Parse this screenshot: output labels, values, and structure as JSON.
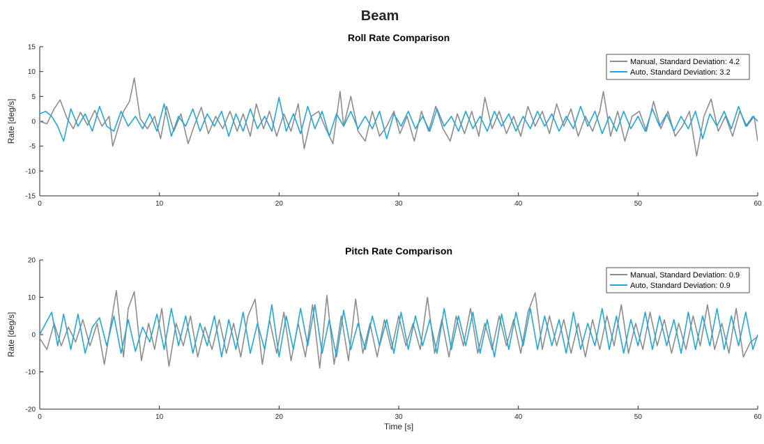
{
  "figure_title": "Beam",
  "chart_data": [
    {
      "type": "line",
      "title": "Roll Rate Comparison",
      "xlabel": "",
      "ylabel": "Rate [deg/s]",
      "xlim": [
        0,
        60
      ],
      "ylim": [
        -15,
        15
      ],
      "xticks": [
        0,
        10,
        20,
        30,
        40,
        50,
        60
      ],
      "yticks": [
        -15,
        -10,
        -5,
        0,
        5,
        10,
        15
      ],
      "grid": false,
      "legend": "top-right",
      "series": [
        {
          "name": "Manual, Standard Deviation: 4.2",
          "color": "#8c8c8c",
          "x": [
            0,
            0.6,
            1.2,
            1.7,
            2.3,
            2.8,
            3.4,
            4.0,
            4.6,
            5.2,
            5.8,
            6.1,
            6.6,
            7.0,
            7.5,
            7.9,
            8.4,
            9.0,
            9.6,
            10.1,
            10.6,
            11.2,
            11.8,
            12.4,
            12.9,
            13.5,
            14.1,
            14.7,
            15.3,
            15.9,
            16.5,
            17.0,
            17.6,
            18.1,
            18.7,
            19.2,
            19.8,
            20.4,
            21.0,
            21.6,
            22.1,
            22.7,
            23.3,
            23.9,
            24.5,
            25.1,
            25.4,
            26.0,
            26.6,
            27.2,
            27.8,
            28.4,
            29.0,
            29.6,
            30.1,
            30.7,
            31.3,
            31.9,
            32.5,
            33.1,
            33.7,
            34.3,
            34.9,
            35.5,
            36.1,
            36.7,
            37.2,
            37.8,
            38.4,
            39.0,
            39.6,
            40.2,
            40.8,
            41.4,
            42.0,
            42.6,
            43.2,
            43.8,
            44.4,
            45.0,
            45.6,
            46.2,
            46.8,
            47.1,
            47.7,
            48.3,
            48.9,
            49.5,
            50.1,
            50.7,
            51.3,
            51.9,
            52.5,
            53.1,
            53.7,
            54.3,
            54.9,
            55.5,
            56.1,
            56.7,
            57.3,
            57.9,
            58.5,
            59.1,
            59.7,
            60
          ],
          "y": [
            0,
            -0.5,
            2.5,
            4.3,
            0.5,
            -1.5,
            1.8,
            -0.8,
            2.2,
            -1.0,
            1.0,
            -5.0,
            -1.0,
            2.0,
            4.0,
            8.7,
            0.5,
            -1.5,
            1.0,
            -3.5,
            3.0,
            -2.0,
            1.5,
            -4.5,
            -1.0,
            2.8,
            -2.5,
            1.0,
            -1.5,
            2.0,
            -2.0,
            1.5,
            -3.0,
            3.5,
            -1.5,
            2.0,
            -3.0,
            1.5,
            -2.0,
            3.5,
            -5.5,
            1.0,
            2.0,
            -1.5,
            -4.5,
            6.0,
            -1.0,
            5.0,
            -2.0,
            -4.0,
            2.0,
            -3.0,
            -1.0,
            2.0,
            -2.5,
            1.0,
            -4.0,
            2.0,
            -2.0,
            3.0,
            -1.5,
            -4.0,
            1.5,
            -2.5,
            2.0,
            -3.0,
            4.8,
            -1.5,
            2.0,
            -2.5,
            1.0,
            -3.0,
            3.0,
            -1.0,
            2.0,
            -2.5,
            3.5,
            -1.0,
            2.5,
            -3.0,
            1.0,
            -2.0,
            2.0,
            6.0,
            -3.0,
            2.0,
            -4.0,
            1.0,
            2.0,
            -2.0,
            4.0,
            -1.5,
            2.0,
            -3.0,
            -1.0,
            2.0,
            -7.0,
            1.0,
            4.5,
            -2.0,
            1.0,
            -3.0,
            2.0,
            -1.0,
            1.0,
            -4.0
          ]
        },
        {
          "name": "Auto, Standard Deviation: 3.2",
          "color": "#1fa7dc",
          "x": [
            0,
            0.5,
            1.0,
            1.5,
            2.0,
            2.6,
            3.2,
            3.8,
            4.4,
            5.0,
            5.6,
            6.2,
            6.8,
            7.4,
            8.0,
            8.6,
            9.2,
            9.8,
            10.4,
            11.0,
            11.6,
            12.2,
            12.8,
            13.4,
            14.0,
            14.6,
            15.2,
            15.8,
            16.4,
            17.0,
            17.6,
            18.2,
            18.8,
            19.4,
            20.0,
            20.6,
            21.2,
            21.8,
            22.4,
            23.0,
            23.6,
            24.2,
            24.8,
            25.4,
            26.0,
            26.6,
            27.2,
            27.8,
            28.4,
            29.0,
            29.6,
            30.2,
            30.8,
            31.4,
            32.0,
            32.6,
            33.2,
            33.8,
            34.4,
            35.0,
            35.6,
            36.2,
            36.8,
            37.4,
            38.0,
            38.6,
            39.2,
            39.8,
            40.4,
            41.0,
            41.6,
            42.2,
            42.8,
            43.4,
            44.0,
            44.6,
            45.2,
            45.8,
            46.4,
            47.0,
            47.6,
            48.2,
            48.8,
            49.4,
            50.0,
            50.6,
            51.2,
            51.8,
            52.4,
            53.0,
            53.6,
            54.2,
            54.8,
            55.4,
            56.0,
            56.6,
            57.2,
            57.8,
            58.4,
            59.0,
            59.6,
            60
          ],
          "y": [
            1.5,
            2.0,
            1.0,
            -1.0,
            -4.0,
            2.5,
            -1.0,
            1.5,
            -2.0,
            3.0,
            -1.0,
            -2.0,
            2.0,
            -1.0,
            1.0,
            -1.5,
            1.5,
            -2.0,
            3.5,
            -3.0,
            1.0,
            -1.0,
            2.5,
            -2.0,
            1.5,
            -1.0,
            2.0,
            -3.0,
            1.5,
            -2.0,
            2.5,
            -1.5,
            1.0,
            -2.0,
            4.8,
            -2.0,
            1.5,
            -2.5,
            3.0,
            -1.5,
            2.0,
            -3.0,
            1.5,
            -1.0,
            2.0,
            -1.5,
            1.0,
            -1.5,
            2.0,
            -3.5,
            1.5,
            -1.0,
            2.0,
            -1.5,
            1.0,
            -2.0,
            2.5,
            -1.0,
            1.0,
            -2.0,
            2.0,
            -1.5,
            1.0,
            -2.0,
            2.0,
            -1.0,
            1.5,
            -2.0,
            1.0,
            -1.5,
            2.0,
            -1.0,
            1.5,
            -2.0,
            1.0,
            -1.5,
            3.0,
            -1.0,
            2.0,
            -2.5,
            1.0,
            -2.0,
            2.0,
            -1.5,
            1.0,
            -2.0,
            2.5,
            -1.0,
            1.5,
            -2.0,
            1.0,
            -1.5,
            2.0,
            -3.5,
            1.5,
            -1.0,
            2.0,
            -1.5,
            3.0,
            -1.0,
            1.0,
            0
          ]
        }
      ]
    },
    {
      "type": "line",
      "title": "Pitch Rate Comparison",
      "xlabel": "Time [s]",
      "ylabel": "Rate [deg/s]",
      "xlim": [
        0,
        60
      ],
      "ylim": [
        -20,
        20
      ],
      "xticks": [
        0,
        10,
        20,
        30,
        40,
        50,
        60
      ],
      "yticks": [
        -20,
        -10,
        0,
        10,
        20
      ],
      "grid": false,
      "legend": "top-right",
      "series": [
        {
          "name": "Manual, Standard Deviation: 0.9",
          "color": "#8c8c8c",
          "x": [
            0,
            0.6,
            1.2,
            1.8,
            2.4,
            3.0,
            3.6,
            4.2,
            4.8,
            5.4,
            5.9,
            6.4,
            7.0,
            7.4,
            7.9,
            8.5,
            9.1,
            9.6,
            10.2,
            10.8,
            11.4,
            12.0,
            12.6,
            13.2,
            13.8,
            14.4,
            15.0,
            15.6,
            16.2,
            16.8,
            17.4,
            18.0,
            18.6,
            19.2,
            19.8,
            20.4,
            21.0,
            21.6,
            22.2,
            22.8,
            23.4,
            24.0,
            24.6,
            25.2,
            25.8,
            26.4,
            27.0,
            27.6,
            28.2,
            28.8,
            29.4,
            30.0,
            30.6,
            31.2,
            31.8,
            32.4,
            33.0,
            33.6,
            34.2,
            34.8,
            35.4,
            36.0,
            36.6,
            37.2,
            37.8,
            38.4,
            39.0,
            39.6,
            40.2,
            40.8,
            41.4,
            42.0,
            42.6,
            43.2,
            43.8,
            44.4,
            45.0,
            45.6,
            46.2,
            46.8,
            47.4,
            48.0,
            48.6,
            49.2,
            49.8,
            50.4,
            51.0,
            51.6,
            52.2,
            52.8,
            53.4,
            54.0,
            54.6,
            55.2,
            55.8,
            56.4,
            57.0,
            57.6,
            58.2,
            58.8,
            59.4,
            60
          ],
          "y": [
            -1.0,
            -4.0,
            3.0,
            -3.0,
            2.0,
            -2.0,
            4.0,
            -3.0,
            3.0,
            -8.0,
            2.0,
            11.8,
            -6.0,
            7.0,
            11.5,
            -7.0,
            3.0,
            -4.0,
            7.0,
            -8.5,
            3.0,
            -3.0,
            5.0,
            -6.0,
            2.0,
            -4.0,
            4.0,
            -5.0,
            3.0,
            -6.0,
            5.0,
            9.5,
            -8.0,
            4.0,
            -5.0,
            6.0,
            -7.0,
            3.0,
            -6.0,
            8.0,
            -9.0,
            10.5,
            -8.0,
            5.0,
            -7.0,
            9.5,
            -5.0,
            3.0,
            -6.0,
            4.0,
            -4.0,
            5.0,
            -3.0,
            3.0,
            -4.0,
            10.0,
            -5.0,
            4.0,
            -6.0,
            5.0,
            -3.0,
            7.0,
            -5.0,
            3.0,
            -4.0,
            5.0,
            -3.0,
            4.0,
            -5.0,
            6.0,
            11.2,
            -4.0,
            5.0,
            -3.0,
            4.0,
            -5.0,
            3.0,
            -6.0,
            4.0,
            -4.0,
            5.0,
            -3.0,
            8.0,
            -5.0,
            3.0,
            -4.0,
            6.0,
            -3.0,
            4.0,
            -5.0,
            3.0,
            -4.0,
            5.0,
            -3.0,
            8.0,
            -4.0,
            3.0,
            -5.0,
            7.0,
            -6.0,
            -2.0,
            -0.5
          ]
        },
        {
          "name": "Auto, Standard Deviation: 0.9",
          "color": "#1fa7dc",
          "x": [
            0,
            0.5,
            1.0,
            1.5,
            2.0,
            2.6,
            3.2,
            3.8,
            4.4,
            5.0,
            5.6,
            6.2,
            6.8,
            7.4,
            8.0,
            8.6,
            9.2,
            9.8,
            10.4,
            11.0,
            11.6,
            12.2,
            12.8,
            13.4,
            14.0,
            14.6,
            15.2,
            15.8,
            16.4,
            17.0,
            17.6,
            18.2,
            18.8,
            19.4,
            20.0,
            20.6,
            21.2,
            21.8,
            22.4,
            23.0,
            23.6,
            24.2,
            24.8,
            25.4,
            26.0,
            26.6,
            27.2,
            27.8,
            28.4,
            29.0,
            29.6,
            30.2,
            30.8,
            31.4,
            32.0,
            32.6,
            33.2,
            33.8,
            34.4,
            35.0,
            35.6,
            36.2,
            36.8,
            37.4,
            38.0,
            38.6,
            39.2,
            39.8,
            40.4,
            41.0,
            41.6,
            42.2,
            42.8,
            43.4,
            44.0,
            44.6,
            45.2,
            45.8,
            46.4,
            47.0,
            47.6,
            48.2,
            48.8,
            49.4,
            50.0,
            50.6,
            51.2,
            51.8,
            52.4,
            53.0,
            53.6,
            54.2,
            54.8,
            55.4,
            56.0,
            56.6,
            57.2,
            57.8,
            58.4,
            59.0,
            59.6,
            60
          ],
          "y": [
            0,
            3.0,
            6.0,
            -3.0,
            5.5,
            -4.0,
            5.5,
            -5.0,
            2.0,
            4.5,
            -3.0,
            5.0,
            -5.0,
            4.0,
            -4.5,
            2.0,
            -2.0,
            5.5,
            -4.0,
            7.0,
            -3.0,
            5.0,
            -5.0,
            3.0,
            -3.0,
            5.0,
            -6.0,
            4.0,
            -4.0,
            6.0,
            -5.0,
            3.0,
            -4.0,
            8.0,
            -6.0,
            5.0,
            -4.0,
            7.0,
            -3.0,
            8.0,
            -5.0,
            4.0,
            -6.0,
            6.5,
            -4.0,
            3.0,
            -4.0,
            5.0,
            -3.0,
            4.0,
            -5.0,
            6.0,
            -4.0,
            5.0,
            -3.0,
            4.0,
            -5.0,
            7.0,
            -4.0,
            5.0,
            -3.0,
            6.0,
            -5.0,
            4.0,
            -6.0,
            5.5,
            -4.0,
            6.0,
            -3.0,
            7.0,
            -4.0,
            5.0,
            -3.0,
            4.0,
            -5.0,
            6.0,
            -4.0,
            3.0,
            -3.0,
            7.0,
            -4.0,
            5.0,
            -5.0,
            4.0,
            -3.0,
            6.0,
            -4.0,
            5.0,
            -3.0,
            4.0,
            -5.0,
            6.0,
            -4.0,
            5.0,
            -3.0,
            7.0,
            -4.0,
            5.0,
            -3.0,
            6.0,
            -4.0,
            0
          ]
        }
      ]
    }
  ]
}
